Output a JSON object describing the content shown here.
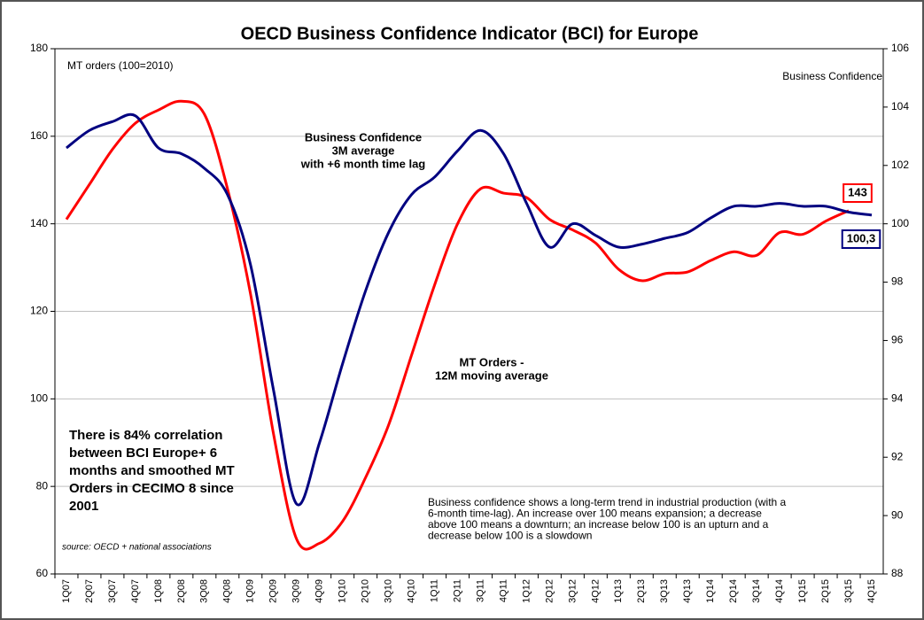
{
  "chart_data": {
    "type": "line",
    "title": "OECD Business Confidence Indicator (BCI) for Europe",
    "ylabel": "MT orders (100=2010)",
    "y2label": "Business Confidence",
    "categories": [
      "1Q07",
      "2Q07",
      "3Q07",
      "4Q07",
      "1Q08",
      "2Q08",
      "3Q08",
      "4Q08",
      "1Q09",
      "2Q09",
      "3Q09",
      "4Q09",
      "1Q10",
      "2Q10",
      "3Q10",
      "4Q10",
      "1Q11",
      "2Q11",
      "3Q11",
      "4Q11",
      "1Q12",
      "2Q12",
      "3Q12",
      "4Q12",
      "1Q13",
      "2Q13",
      "3Q13",
      "4Q13",
      "1Q14",
      "2Q14",
      "3Q14",
      "4Q14",
      "1Q15",
      "2Q15",
      "3Q15",
      "4Q15"
    ],
    "series": [
      {
        "label": [
          "MT Orders -",
          "12M moving average"
        ],
        "color": "#ff0000",
        "axis": "y",
        "values": [
          141,
          149,
          157,
          163,
          166,
          168,
          165,
          148,
          124,
          92,
          68,
          67,
          72,
          82,
          94,
          110,
          126,
          140,
          148,
          147,
          146,
          141,
          138.6,
          135.6,
          129.6,
          127,
          128.6,
          129,
          131.6,
          133.6,
          132.8,
          138,
          137.6,
          140.6,
          143,
          null
        ],
        "value_labels": [
          null,
          null,
          null,
          null,
          null,
          null,
          null,
          null,
          null,
          null,
          null,
          null,
          null,
          null,
          null,
          null,
          null,
          null,
          null,
          null,
          null,
          null,
          null,
          null,
          null,
          null,
          null,
          null,
          null,
          null,
          null,
          null,
          null,
          null,
          "143",
          null
        ]
      },
      {
        "label": [
          "Business Confidence",
          "3M average",
          "with +6 month time lag"
        ],
        "color": "#000080",
        "axis": "y2",
        "values": [
          102.6,
          103.2,
          103.5,
          103.7,
          102.6,
          102.4,
          101.9,
          101,
          98.6,
          94.3,
          90.4,
          92.5,
          95.2,
          97.7,
          99.7,
          101,
          101.6,
          102.5,
          103.2,
          102.4,
          100.7,
          99.2,
          100,
          99.6,
          99.2,
          99.3,
          99.5,
          99.7,
          100.2,
          100.6,
          100.6,
          100.7,
          100.6,
          100.6,
          100.4,
          100.3
        ],
        "value_labels": [
          null,
          null,
          null,
          null,
          null,
          null,
          null,
          null,
          null,
          null,
          null,
          null,
          null,
          null,
          null,
          null,
          null,
          null,
          null,
          null,
          null,
          null,
          null,
          null,
          null,
          null,
          null,
          null,
          null,
          null,
          null,
          null,
          null,
          null,
          null,
          "100,3"
        ]
      }
    ],
    "ylim": [
      60,
      180
    ],
    "yticks": [
      60,
      80,
      100,
      120,
      140,
      160,
      180
    ],
    "y2lim": [
      88,
      106
    ],
    "y2ticks": [
      88,
      90,
      92,
      94,
      96,
      98,
      100,
      102,
      104,
      106
    ],
    "grid": true,
    "note": [
      "There is 84% correlation",
      "between BCI Europe+ 6",
      "months and smoothed MT",
      "Orders in CECIMO 8 since",
      "2001"
    ],
    "footnote": [
      "Business confidence shows a long-term trend in industrial production (with a",
      "6-month time-lag). An increase over 100 means expansion; a decrease",
      "above 100 means a downturn; an increase below 100 is an upturn and a",
      "decrease below 100 is a slowdown"
    ],
    "source": "source: OECD + national associations"
  }
}
